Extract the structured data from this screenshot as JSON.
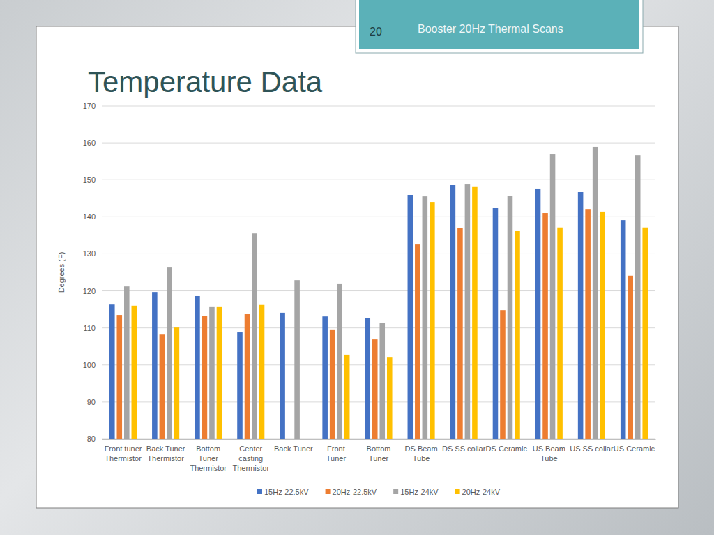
{
  "header": {
    "number": 20,
    "text": "Booster 20Hz Thermal Scans"
  },
  "chart_data": {
    "type": "bar",
    "title": "Temperature Data",
    "y_label": "Degrees (F)",
    "categories": [
      "Front tuner\nThermistor",
      "Back Tuner\nThermistor",
      "Bottom\nTuner\nThermistor",
      "Center\ncasting\nThermistor",
      "Back Tuner",
      "Front\nTuner",
      "Bottom\nTuner",
      "DS Beam\nTube",
      "DS SS collar",
      "DS Ceramic",
      "US Beam\nTube",
      "US SS collar",
      "US Ceramic"
    ],
    "series": [
      {
        "name": "15Hz-22.5kV",
        "color": "#4472c4",
        "values": [
          116.3,
          119.7,
          118.6,
          108.8,
          114.1,
          113.1,
          112.6,
          145.9,
          148.7,
          142.5,
          147.6,
          146.7,
          139.1
        ]
      },
      {
        "name": "20Hz-22.5kV",
        "color": "#ed7d31",
        "values": [
          113.5,
          108.2,
          113.3,
          113.7,
          null,
          109.4,
          106.9,
          132.7,
          136.9,
          114.8,
          141.0,
          142.1,
          124.1
        ]
      },
      {
        "name": "15Hz-24kV",
        "color": "#a5a5a5",
        "values": [
          121.2,
          126.3,
          115.8,
          135.5,
          122.9,
          122.0,
          111.3,
          145.5,
          148.9,
          145.7,
          157.0,
          158.9,
          156.6
        ]
      },
      {
        "name": "20Hz-24kV",
        "color": "#ffc000",
        "values": [
          116.0,
          110.1,
          115.8,
          116.2,
          null,
          102.8,
          102.0,
          144.0,
          148.2,
          136.3,
          137.1,
          141.4,
          137.1
        ]
      }
    ],
    "ylim": [
      80,
      170
    ],
    "yticks": [
      80,
      90,
      100,
      110,
      120,
      130,
      140,
      150,
      160,
      170
    ],
    "grid": true,
    "legend": "bottom"
  }
}
